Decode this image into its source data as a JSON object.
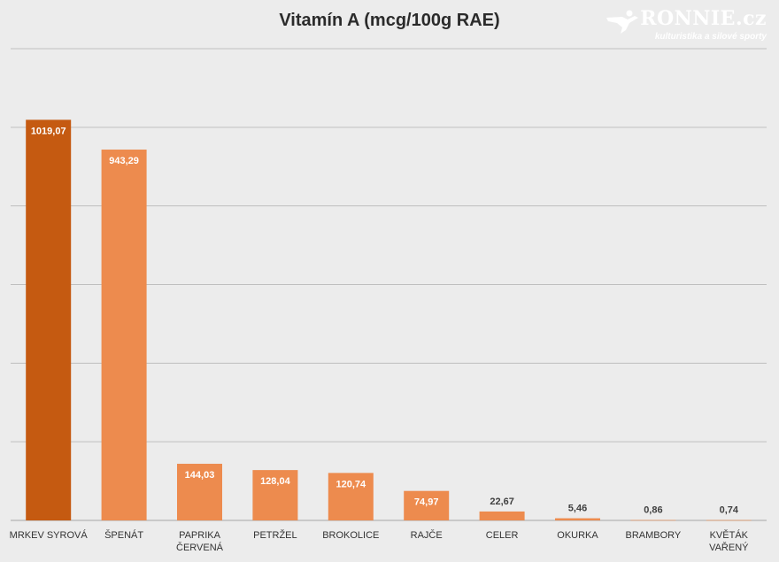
{
  "chart_data": {
    "type": "bar",
    "title": "Vitamín A (mcg/100g RAE)",
    "categories": [
      "MRKEV SYROVÁ",
      "ŠPENÁT",
      "PAPRIKA ČERVENÁ",
      "PETRŽEL",
      "BROKOLICE",
      "RAJČE",
      "CELER",
      "OKURKA",
      "BRAMBORY",
      "KVĚTÁK VAŘENÝ"
    ],
    "values": [
      1019.07,
      943.29,
      144.03,
      128.04,
      120.74,
      74.97,
      22.67,
      5.46,
      0.86,
      0.74
    ],
    "data_labels": [
      "1019,07",
      "943,29",
      "144,03",
      "128,04",
      "120,74",
      "74,97",
      "22,67",
      "5,46",
      "0,86",
      "0,74"
    ],
    "ylim": [
      0,
      1200
    ],
    "grid": true,
    "colors": {
      "highlight": "#c55a11",
      "bar": "#ed8b4e",
      "grid": "#bfbfbf",
      "label_light": "#ffffff",
      "label_dark": "#404040"
    }
  },
  "watermark": {
    "brand": "RONNIE.cz",
    "tagline": "kulturistika a silové sporty"
  }
}
